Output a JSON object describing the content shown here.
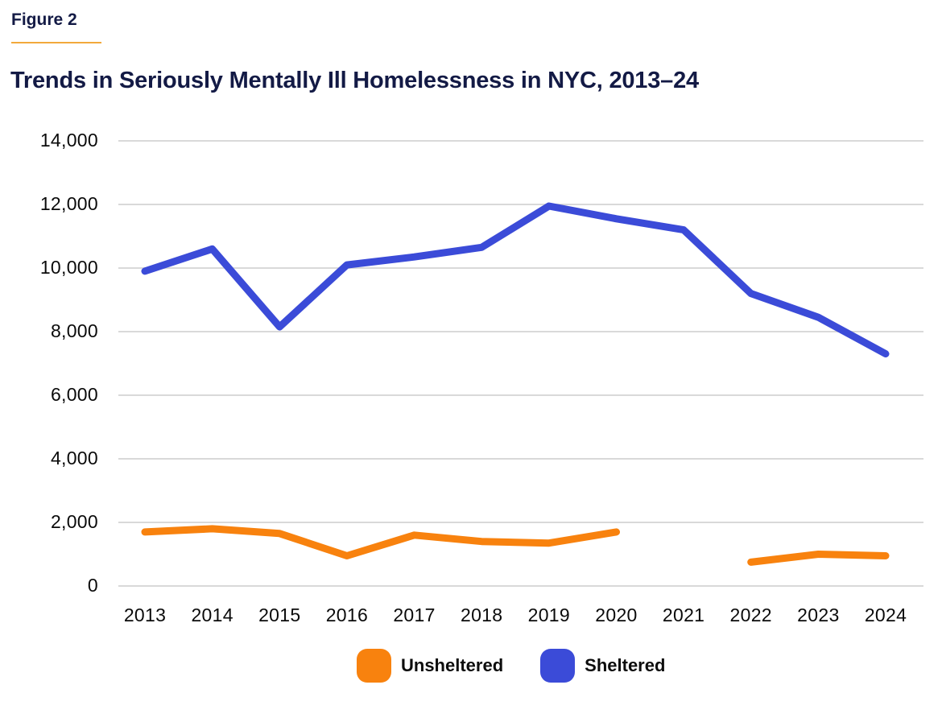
{
  "header": {
    "figure_label": "Figure 2"
  },
  "colors": {
    "title_navy": "#131a45",
    "accent_rule": "#f2a93b",
    "gridline": "#d9d9d9",
    "axis_text": "#0a0a0a",
    "unsheltered_orange": "#f8820e",
    "sheltered_blue": "#3b4bd8"
  },
  "chart_data": {
    "type": "line",
    "title": "Trends in Seriously Mentally Ill Homelessness in NYC, 2013–24",
    "x": [
      "2013",
      "2014",
      "2015",
      "2016",
      "2017",
      "2018",
      "2019",
      "2020",
      "2021",
      "2022",
      "2023",
      "2024"
    ],
    "series": [
      {
        "name": "Unsheltered",
        "color": "#f8820e",
        "values": [
          1700,
          1800,
          1650,
          950,
          1600,
          1400,
          1350,
          1700,
          null,
          750,
          1000,
          950
        ]
      },
      {
        "name": "Sheltered",
        "color": "#3b4bd8",
        "values": [
          9900,
          10600,
          8150,
          10100,
          10350,
          10650,
          11950,
          11550,
          11200,
          9200,
          8450,
          7300
        ]
      }
    ],
    "xlabel": "",
    "ylabel": "",
    "ylim": [
      0,
      14000
    ],
    "y_tick_values": [
      0,
      2000,
      4000,
      6000,
      8000,
      10000,
      12000,
      14000
    ],
    "y_tick_labels": [
      "0",
      "2,000",
      "4,000",
      "6,000",
      "8,000",
      "10,000",
      "12,000",
      "14,000"
    ],
    "grid": "horizontal",
    "legend_position": "bottom",
    "notes": "Unsheltered series has a gap at 2021 (no data point shown)."
  }
}
